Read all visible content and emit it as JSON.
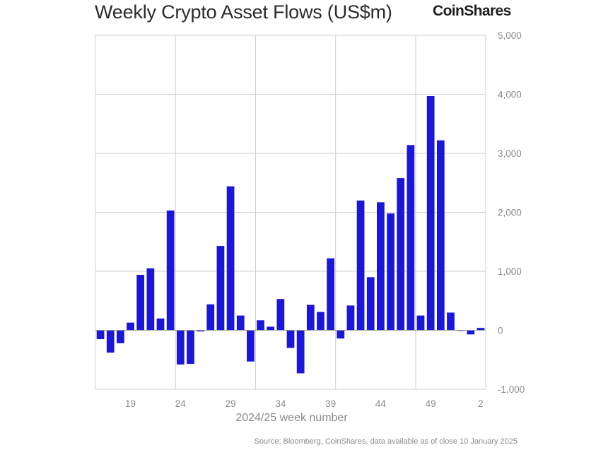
{
  "header": {
    "title": "Weekly Crypto Asset Flows (US$m)",
    "logo_text": "CoinShares"
  },
  "footer": {
    "source": "Source: Bloomberg, CoinShares, data available as of close 10 January 2025"
  },
  "colors": {
    "bar": "#1c17d6",
    "grid": "#cfcfcf",
    "axis_text": "#8a8a8a"
  },
  "chart_data": {
    "type": "bar",
    "title": "Weekly Crypto Asset Flows (US$m)",
    "xlabel": "2024/25 week number",
    "ylabel": "",
    "ylim": [
      -1000,
      5000
    ],
    "y_ticks": [
      -1000,
      0,
      1000,
      2000,
      3000,
      4000,
      5000
    ],
    "y_tick_labels": [
      "-1,000",
      "0",
      "1,000",
      "2,000",
      "3,000",
      "4,000",
      "5,000"
    ],
    "y_axis_side": "right",
    "grid": true,
    "x_tick_labels": [
      "19",
      "24",
      "29",
      "34",
      "39",
      "44",
      "49",
      "2"
    ],
    "categories": [
      "16",
      "17",
      "18",
      "19",
      "20",
      "21",
      "22",
      "23",
      "24",
      "25",
      "26",
      "27",
      "28",
      "29",
      "30",
      "31",
      "32",
      "33",
      "34",
      "35",
      "36",
      "37",
      "38",
      "39",
      "40",
      "41",
      "42",
      "43",
      "44",
      "45",
      "46",
      "47",
      "48",
      "49",
      "50",
      "51",
      "52",
      "1",
      "2"
    ],
    "values": [
      -150,
      -380,
      -220,
      130,
      940,
      1050,
      200,
      2030,
      -580,
      -570,
      -20,
      440,
      1430,
      2440,
      250,
      -530,
      170,
      60,
      530,
      -300,
      -730,
      430,
      310,
      1220,
      -140,
      420,
      2200,
      900,
      2170,
      1980,
      2580,
      3140,
      250,
      3970,
      3220,
      300,
      -10,
      -70,
      40
    ]
  }
}
